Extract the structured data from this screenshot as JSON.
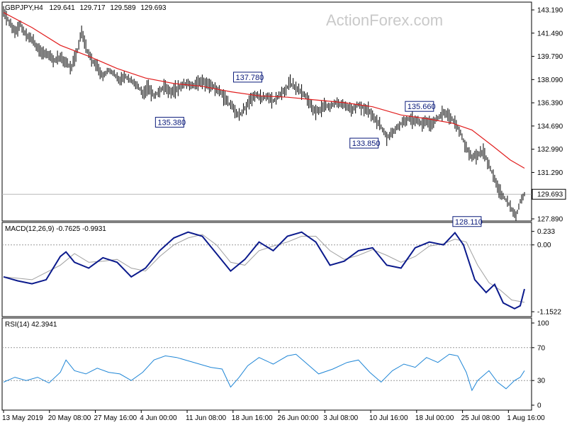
{
  "watermark": "ActionForex.com",
  "chart_data": [
    {
      "type": "candlestick",
      "header": {
        "symbol": "GBPJPY,H4",
        "open": "129.641",
        "high": "129.717",
        "low": "129.589",
        "close": "129.693"
      },
      "ylim": [
        127.89,
        143.19
      ],
      "y_ticks": [
        "143.190",
        "141.490",
        "139.790",
        "138.090",
        "136.390",
        "134.690",
        "132.990",
        "131.290",
        "127.890"
      ],
      "last_price": 129.693,
      "last_price_label": "129.693",
      "x_ticks": [
        "13 May 2019",
        "20 May 08:00",
        "27 May 16:00",
        "4 Jun 00:00",
        "11 Jun 08:00",
        "18 Jun 16:00",
        "26 Jun 00:00",
        "3 Jul 08:00",
        "10 Jul 16:00",
        "18 Jul 00:00",
        "25 Jul 08:00",
        "1 Aug 16:00"
      ],
      "price_path": [
        [
          0,
          143.0
        ],
        [
          4,
          142.3
        ],
        [
          8,
          141.6
        ],
        [
          12,
          142.1
        ],
        [
          16,
          141.4
        ],
        [
          20,
          141.0
        ],
        [
          24,
          140.4
        ],
        [
          28,
          140.0
        ],
        [
          32,
          139.9
        ],
        [
          36,
          139.5
        ],
        [
          40,
          139.7
        ],
        [
          44,
          139.3
        ],
        [
          48,
          139.0
        ],
        [
          52,
          140.2
        ],
        [
          55,
          141.7
        ],
        [
          58,
          140.4
        ],
        [
          62,
          139.6
        ],
        [
          66,
          139.0
        ],
        [
          70,
          138.3
        ],
        [
          74,
          138.8
        ],
        [
          78,
          138.5
        ],
        [
          82,
          138.0
        ],
        [
          86,
          138.3
        ],
        [
          90,
          138.0
        ],
        [
          94,
          137.7
        ],
        [
          98,
          137.1
        ],
        [
          102,
          137.5
        ],
        [
          106,
          136.9
        ],
        [
          110,
          137.2
        ],
        [
          114,
          137.6
        ],
        [
          118,
          137.2
        ],
        [
          122,
          137.4
        ],
        [
          126,
          137.7
        ],
        [
          130,
          137.8
        ],
        [
          134,
          137.6
        ],
        [
          138,
          138.0
        ],
        [
          142,
          137.9
        ],
        [
          146,
          137.7
        ],
        [
          150,
          137.4
        ],
        [
          154,
          137.0
        ],
        [
          158,
          136.4
        ],
        [
          162,
          136.0
        ],
        [
          166,
          135.4
        ],
        [
          170,
          136.0
        ],
        [
          174,
          136.6
        ],
        [
          178,
          137.0
        ],
        [
          182,
          136.7
        ],
        [
          186,
          136.9
        ],
        [
          190,
          136.5
        ],
        [
          194,
          136.9
        ],
        [
          198,
          137.3
        ],
        [
          202,
          137.8
        ],
        [
          206,
          137.5
        ],
        [
          210,
          137.2
        ],
        [
          214,
          136.7
        ],
        [
          218,
          135.9
        ],
        [
          222,
          135.8
        ],
        [
          226,
          136.2
        ],
        [
          230,
          136.1
        ],
        [
          234,
          136.4
        ],
        [
          238,
          136.2
        ],
        [
          242,
          136.1
        ],
        [
          246,
          135.9
        ],
        [
          250,
          136.3
        ],
        [
          254,
          136.0
        ],
        [
          258,
          135.7
        ],
        [
          262,
          135.2
        ],
        [
          266,
          134.6
        ],
        [
          270,
          133.9
        ],
        [
          274,
          134.2
        ],
        [
          278,
          134.7
        ],
        [
          282,
          135.0
        ],
        [
          286,
          135.2
        ],
        [
          290,
          135.1
        ],
        [
          294,
          134.9
        ],
        [
          298,
          135.0
        ],
        [
          302,
          134.8
        ],
        [
          306,
          135.3
        ],
        [
          310,
          135.7
        ],
        [
          314,
          135.4
        ],
        [
          318,
          135.0
        ],
        [
          322,
          134.2
        ],
        [
          326,
          133.1
        ],
        [
          330,
          132.4
        ],
        [
          334,
          132.6
        ],
        [
          338,
          132.8
        ],
        [
          342,
          131.9
        ],
        [
          346,
          130.8
        ],
        [
          350,
          129.8
        ],
        [
          354,
          129.3
        ],
        [
          358,
          128.6
        ],
        [
          361,
          128.1
        ],
        [
          364,
          129.2
        ],
        [
          367,
          129.7
        ]
      ],
      "ma_path": [
        [
          0,
          143.0
        ],
        [
          20,
          141.9
        ],
        [
          40,
          140.6
        ],
        [
          60,
          139.8
        ],
        [
          80,
          138.9
        ],
        [
          100,
          138.2
        ],
        [
          120,
          137.8
        ],
        [
          140,
          137.6
        ],
        [
          160,
          137.2
        ],
        [
          180,
          136.9
        ],
        [
          200,
          136.8
        ],
        [
          220,
          136.6
        ],
        [
          240,
          136.4
        ],
        [
          260,
          136.1
        ],
        [
          280,
          135.5
        ],
        [
          300,
          135.2
        ],
        [
          316,
          134.9
        ],
        [
          330,
          134.4
        ],
        [
          345,
          133.2
        ],
        [
          357,
          132.2
        ],
        [
          367,
          131.6
        ]
      ],
      "annotations": [
        {
          "label": "137.780",
          "x": 172,
          "y": 137.8
        },
        {
          "label": "135.380",
          "x": 128,
          "y": 135.38
        },
        {
          "label": "133.850",
          "x": 261,
          "y": 133.85
        },
        {
          "label": "135.660",
          "x": 293,
          "y": 135.66
        },
        {
          "label": "128.110",
          "x": 335,
          "y": 128.11
        }
      ]
    },
    {
      "type": "line",
      "label": "MACD(12,26,9) -0.7625 -0.9931",
      "ylim": [
        -1.2,
        0.29
      ],
      "y_ticks": [
        "0.233",
        "0.00",
        "-1.1522"
      ],
      "macd_path": [
        [
          0,
          -0.55
        ],
        [
          10,
          -0.62
        ],
        [
          20,
          -0.67
        ],
        [
          30,
          -0.6
        ],
        [
          40,
          -0.2
        ],
        [
          44,
          -0.12
        ],
        [
          50,
          -0.3
        ],
        [
          60,
          -0.4
        ],
        [
          70,
          -0.22
        ],
        [
          80,
          -0.3
        ],
        [
          90,
          -0.55
        ],
        [
          100,
          -0.4
        ],
        [
          110,
          -0.1
        ],
        [
          120,
          0.12
        ],
        [
          130,
          0.22
        ],
        [
          140,
          0.15
        ],
        [
          150,
          -0.15
        ],
        [
          160,
          -0.45
        ],
        [
          170,
          -0.25
        ],
        [
          180,
          0.05
        ],
        [
          190,
          -0.1
        ],
        [
          200,
          0.15
        ],
        [
          210,
          0.22
        ],
        [
          220,
          0.05
        ],
        [
          230,
          -0.35
        ],
        [
          240,
          -0.28
        ],
        [
          250,
          -0.1
        ],
        [
          260,
          -0.05
        ],
        [
          270,
          -0.35
        ],
        [
          280,
          -0.4
        ],
        [
          290,
          -0.05
        ],
        [
          300,
          0.05
        ],
        [
          310,
          0.0
        ],
        [
          318,
          0.21
        ],
        [
          324,
          0.0
        ],
        [
          332,
          -0.6
        ],
        [
          340,
          -0.82
        ],
        [
          346,
          -0.68
        ],
        [
          352,
          -1.0
        ],
        [
          360,
          -1.1
        ],
        [
          364,
          -1.05
        ],
        [
          367,
          -0.76
        ]
      ],
      "signal_path": [
        [
          0,
          -0.55
        ],
        [
          20,
          -0.6
        ],
        [
          40,
          -0.35
        ],
        [
          50,
          -0.15
        ],
        [
          60,
          -0.3
        ],
        [
          70,
          -0.28
        ],
        [
          80,
          -0.25
        ],
        [
          90,
          -0.4
        ],
        [
          100,
          -0.45
        ],
        [
          110,
          -0.2
        ],
        [
          120,
          0.0
        ],
        [
          130,
          0.12
        ],
        [
          140,
          0.18
        ],
        [
          150,
          0.0
        ],
        [
          160,
          -0.3
        ],
        [
          170,
          -0.35
        ],
        [
          180,
          -0.1
        ],
        [
          190,
          -0.02
        ],
        [
          200,
          0.05
        ],
        [
          210,
          0.15
        ],
        [
          220,
          0.15
        ],
        [
          230,
          -0.1
        ],
        [
          240,
          -0.25
        ],
        [
          250,
          -0.18
        ],
        [
          260,
          -0.08
        ],
        [
          270,
          -0.18
        ],
        [
          280,
          -0.3
        ],
        [
          290,
          -0.2
        ],
        [
          300,
          -0.02
        ],
        [
          310,
          0.02
        ],
        [
          318,
          0.1
        ],
        [
          326,
          0.05
        ],
        [
          334,
          -0.35
        ],
        [
          342,
          -0.65
        ],
        [
          350,
          -0.78
        ],
        [
          358,
          -0.95
        ],
        [
          367,
          -0.99
        ]
      ]
    },
    {
      "type": "line",
      "label": "RSI(14) 42.3941",
      "ylim": [
        0,
        100
      ],
      "y_ticks": [
        "100",
        "70",
        "30",
        "0"
      ],
      "y_tick_values": [
        100,
        70,
        30,
        0
      ],
      "levels": [
        70,
        30
      ],
      "rsi_path": [
        [
          0,
          28
        ],
        [
          8,
          34
        ],
        [
          16,
          30
        ],
        [
          24,
          34
        ],
        [
          32,
          27
        ],
        [
          40,
          40
        ],
        [
          44,
          55
        ],
        [
          50,
          42
        ],
        [
          58,
          38
        ],
        [
          66,
          45
        ],
        [
          74,
          40
        ],
        [
          82,
          38
        ],
        [
          90,
          30
        ],
        [
          98,
          40
        ],
        [
          106,
          55
        ],
        [
          114,
          60
        ],
        [
          122,
          58
        ],
        [
          130,
          54
        ],
        [
          138,
          50
        ],
        [
          146,
          46
        ],
        [
          154,
          44
        ],
        [
          160,
          22
        ],
        [
          166,
          34
        ],
        [
          172,
          48
        ],
        [
          180,
          58
        ],
        [
          190,
          50
        ],
        [
          200,
          60
        ],
        [
          206,
          62
        ],
        [
          214,
          50
        ],
        [
          222,
          38
        ],
        [
          232,
          44
        ],
        [
          242,
          52
        ],
        [
          250,
          55
        ],
        [
          258,
          40
        ],
        [
          266,
          28
        ],
        [
          274,
          42
        ],
        [
          282,
          50
        ],
        [
          290,
          46
        ],
        [
          298,
          58
        ],
        [
          306,
          52
        ],
        [
          314,
          62
        ],
        [
          320,
          60
        ],
        [
          326,
          40
        ],
        [
          330,
          18
        ],
        [
          334,
          30
        ],
        [
          338,
          36
        ],
        [
          342,
          42
        ],
        [
          348,
          28
        ],
        [
          354,
          20
        ],
        [
          360,
          30
        ],
        [
          364,
          34
        ],
        [
          367,
          42
        ]
      ]
    }
  ]
}
